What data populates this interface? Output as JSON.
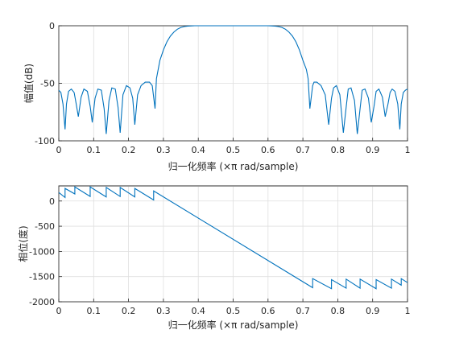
{
  "figure": {
    "title": "",
    "background": "#ffffff",
    "line_color": "#0072bd",
    "grid": true
  },
  "chart_data": [
    {
      "type": "line",
      "xlabel": "归一化频率  (×π rad/sample)",
      "ylabel": "幅值(dB)",
      "xlim": [
        0,
        1
      ],
      "ylim": [
        -100,
        0
      ],
      "xticks": [
        0,
        0.1,
        0.2,
        0.3,
        0.4,
        0.5,
        0.6,
        0.7,
        0.8,
        0.9,
        1
      ],
      "xtick_labels": [
        "0",
        "0.1",
        "0.2",
        "0.3",
        "0.4",
        "0.5",
        "0.6",
        "0.7",
        "0.8",
        "0.9",
        "1"
      ],
      "yticks": [
        -100,
        -50,
        0
      ],
      "ytick_labels": [
        "-100",
        "-50",
        "0"
      ],
      "series": [
        {
          "color": "#0072bd",
          "x": [
            0,
            0.006,
            0.012,
            0.018,
            0.022,
            0.028,
            0.036,
            0.044,
            0.05,
            0.056,
            0.064,
            0.072,
            0.082,
            0.09,
            0.096,
            0.104,
            0.112,
            0.122,
            0.13,
            0.136,
            0.144,
            0.152,
            0.162,
            0.17,
            0.176,
            0.184,
            0.194,
            0.204,
            0.212,
            0.218,
            0.226,
            0.236,
            0.248,
            0.26,
            0.268,
            0.272,
            0.276,
            0.28,
            0.285,
            0.29,
            0.3,
            0.31,
            0.32,
            0.33,
            0.34,
            0.35,
            0.36,
            0.37,
            0.38,
            0.39,
            0.4,
            0.42,
            0.45,
            0.5,
            0.55,
            0.58,
            0.6,
            0.61,
            0.62,
            0.63,
            0.64,
            0.65,
            0.66,
            0.67,
            0.68,
            0.69,
            0.7,
            0.71,
            0.715,
            0.72,
            0.724,
            0.728,
            0.732,
            0.74,
            0.752,
            0.764,
            0.774,
            0.782,
            0.788,
            0.796,
            0.806,
            0.816,
            0.824,
            0.83,
            0.838,
            0.848,
            0.856,
            0.864,
            0.87,
            0.878,
            0.888,
            0.896,
            0.904,
            0.91,
            0.918,
            0.928,
            0.936,
            0.944,
            0.95,
            0.956,
            0.964,
            0.972,
            0.978,
            0.982,
            0.988,
            0.994,
            1
          ],
          "y": [
            -56,
            -58,
            -68,
            -90,
            -68,
            -57,
            -55,
            -58,
            -68,
            -79,
            -62,
            -55,
            -57,
            -70,
            -84,
            -63,
            -55,
            -56,
            -72,
            -94,
            -65,
            -54,
            -55,
            -71,
            -93,
            -60,
            -52,
            -54,
            -63,
            -86,
            -60,
            -52,
            -49,
            -49,
            -52,
            -62,
            -72,
            -46,
            -38,
            -30,
            -21,
            -14,
            -9,
            -5.5,
            -3,
            -1.5,
            -0.7,
            -0.3,
            -0.1,
            0,
            0,
            0,
            0,
            0,
            0,
            0,
            0,
            -0.1,
            -0.3,
            -0.7,
            -1.5,
            -3,
            -5.5,
            -9,
            -14,
            -21,
            -30,
            -38,
            -46,
            -72,
            -62,
            -52,
            -49,
            -49,
            -52,
            -60,
            -86,
            -63,
            -54,
            -52,
            -60,
            -93,
            -71,
            -55,
            -54,
            -65,
            -94,
            -72,
            -56,
            -55,
            -63,
            -84,
            -70,
            -57,
            -55,
            -62,
            -79,
            -68,
            -58,
            -55,
            -57,
            -68,
            -90,
            -68,
            -58,
            -56,
            -55
          ]
        }
      ]
    },
    {
      "type": "line",
      "xlabel": "归一化频率  (×π rad/sample)",
      "ylabel": "相位(度)",
      "xlim": [
        0,
        1
      ],
      "ylim": [
        -2000,
        300
      ],
      "xticks": [
        0,
        0.1,
        0.2,
        0.3,
        0.4,
        0.5,
        0.6,
        0.7,
        0.8,
        0.9,
        1
      ],
      "xtick_labels": [
        "0",
        "0.1",
        "0.2",
        "0.3",
        "0.4",
        "0.5",
        "0.6",
        "0.7",
        "0.8",
        "0.9",
        "1"
      ],
      "yticks": [
        -2000,
        -1500,
        -1000,
        -500,
        0
      ],
      "ytick_labels": [
        "-2000",
        "-1500",
        "-1000",
        "-500",
        "0"
      ],
      "series": [
        {
          "color": "#0072bd",
          "x": [
            0,
            0.018,
            0.018,
            0.046,
            0.046,
            0.09,
            0.09,
            0.136,
            0.136,
            0.176,
            0.176,
            0.218,
            0.218,
            0.272,
            0.272,
            0.728,
            0.728,
            0.782,
            0.782,
            0.824,
            0.824,
            0.864,
            0.864,
            0.91,
            0.91,
            0.954,
            0.954,
            0.982,
            0.982,
            1
          ],
          "y": [
            170,
            70,
            250,
            140,
            280,
            90,
            280,
            80,
            270,
            90,
            270,
            80,
            250,
            20,
            200,
            -1720,
            -1540,
            -1740,
            -1560,
            -1730,
            -1550,
            -1730,
            -1550,
            -1740,
            -1560,
            -1730,
            -1550,
            -1670,
            -1540,
            -1620
          ]
        }
      ]
    }
  ]
}
